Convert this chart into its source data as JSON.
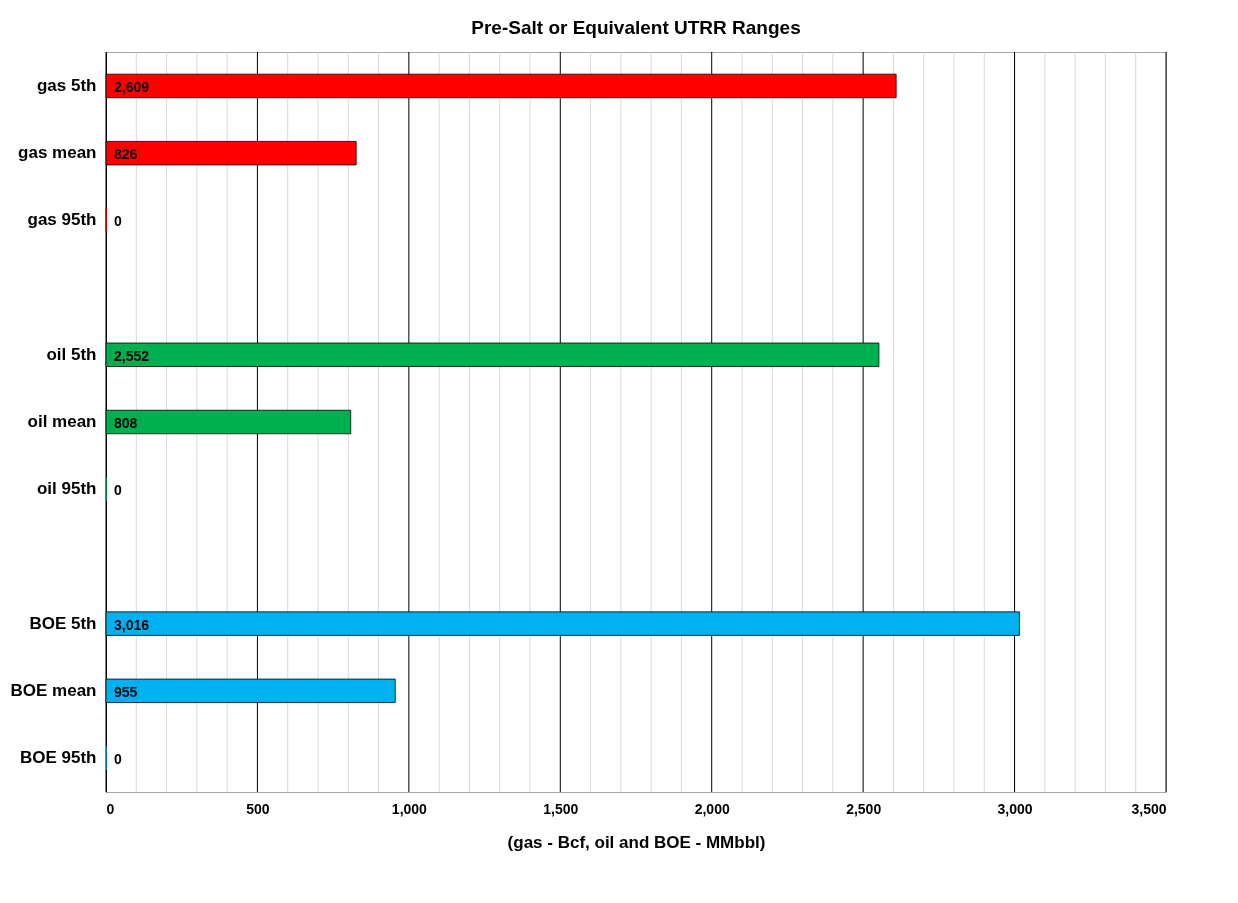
{
  "chart_data": {
    "type": "bar",
    "orientation": "horizontal",
    "title": "Pre-Salt or Equivalent UTRR Ranges",
    "xlabel": "(gas - Bcf, oil and BOE - MMbbl)",
    "categories": [
      "gas 5th",
      "gas mean",
      "gas 95th",
      null,
      "oil 5th",
      "oil mean",
      "oil 95th",
      null,
      "BOE 5th",
      "BOE mean",
      "BOE 95th"
    ],
    "values": [
      2609,
      826,
      0,
      null,
      2552,
      808,
      0,
      null,
      3016,
      955,
      0
    ],
    "value_labels": [
      "2,609",
      "826",
      "0",
      null,
      "2,552",
      "808",
      "0",
      null,
      "3,016",
      "955",
      "0"
    ],
    "colors": [
      "#ff0000",
      "#ff0000",
      "#ff0000",
      "#ffffff",
      "#00b050",
      "#00b050",
      "#00b050",
      "#ffffff",
      "#00b0f0",
      "#00b0f0",
      "#00b0f0"
    ],
    "xlim": [
      0,
      3500
    ],
    "xticks": [
      0,
      {
        "value": 100,
        "label": null
      },
      {
        "value": 200,
        "label": null
      },
      {
        "value": 300,
        "label": null
      },
      {
        "value": 400,
        "label": null
      },
      {
        "value": 500,
        "label": "500"
      },
      {
        "value": 600,
        "label": null
      },
      {
        "value": 700,
        "label": null
      },
      {
        "value": 800,
        "label": null
      },
      {
        "value": 900,
        "label": null
      },
      {
        "value": 1000,
        "label": "1,000"
      },
      {
        "value": 1100,
        "label": null
      },
      {
        "value": 1200,
        "label": null
      },
      {
        "value": 1300,
        "label": null
      },
      {
        "value": 1400,
        "label": null
      },
      {
        "value": 1500,
        "label": "1,500"
      },
      {
        "value": 1600,
        "label": null
      },
      {
        "value": 1700,
        "label": null
      },
      {
        "value": 1800,
        "label": null
      },
      {
        "value": 1900,
        "label": null
      },
      {
        "value": 2000,
        "label": "2,000"
      },
      {
        "value": 2100,
        "label": null
      },
      {
        "value": 2200,
        "label": null
      },
      {
        "value": 2300,
        "label": null
      },
      {
        "value": 2400,
        "label": null
      },
      {
        "value": 2500,
        "label": "2,500"
      },
      {
        "value": 2600,
        "label": null
      },
      {
        "value": 2700,
        "label": null
      },
      {
        "value": 2800,
        "label": null
      },
      {
        "value": 2900,
        "label": null
      },
      {
        "value": 3000,
        "label": "3,000"
      },
      {
        "value": 3100,
        "label": null
      },
      {
        "value": 3200,
        "label": null
      },
      {
        "value": 3300,
        "label": null
      },
      {
        "value": 3400,
        "label": null
      },
      {
        "value": 3500,
        "label": "3,500"
      }
    ],
    "grid": "x"
  }
}
